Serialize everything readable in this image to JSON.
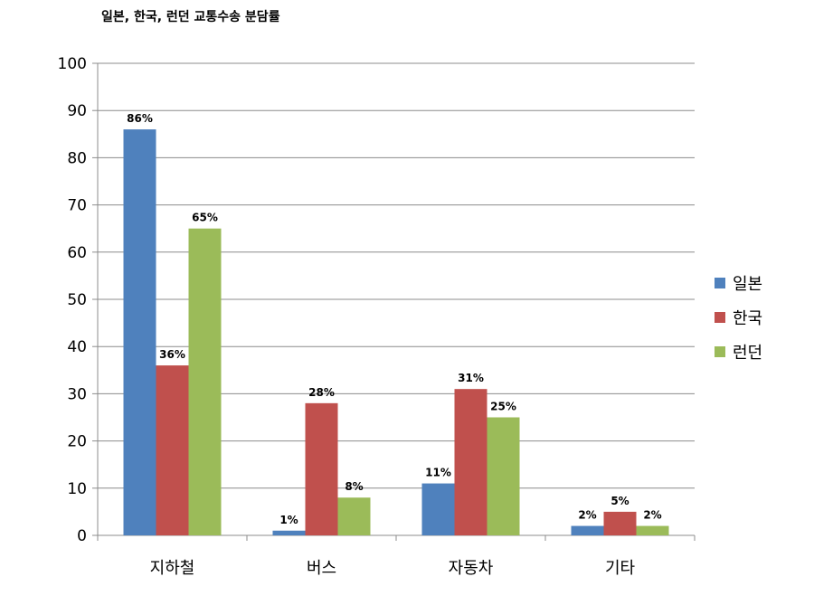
{
  "chart_data": {
    "type": "bar",
    "title": "일본, 한국, 런던 교통수송 분담률",
    "xlabel": "",
    "ylabel": "",
    "ylim": [
      0,
      100
    ],
    "yticks": [
      0,
      10,
      20,
      30,
      40,
      50,
      60,
      70,
      80,
      90,
      100
    ],
    "categories": [
      "지하철",
      "버스",
      "자동차",
      "기타"
    ],
    "series": [
      {
        "name": "일본",
        "color": "#4f81bd",
        "values": [
          86,
          1,
          11,
          2
        ],
        "labels": [
          "86%",
          "1%",
          "11%",
          "2%"
        ]
      },
      {
        "name": "한국",
        "color": "#c0504d",
        "values": [
          36,
          28,
          31,
          5
        ],
        "labels": [
          "36%",
          "28%",
          "31%",
          "5%"
        ]
      },
      {
        "name": "런던",
        "color": "#9bbb59",
        "values": [
          65,
          8,
          25,
          2
        ],
        "labels": [
          "65%",
          "8%",
          "25%",
          "2%"
        ]
      }
    ],
    "grid": true,
    "legend_position": "right"
  }
}
